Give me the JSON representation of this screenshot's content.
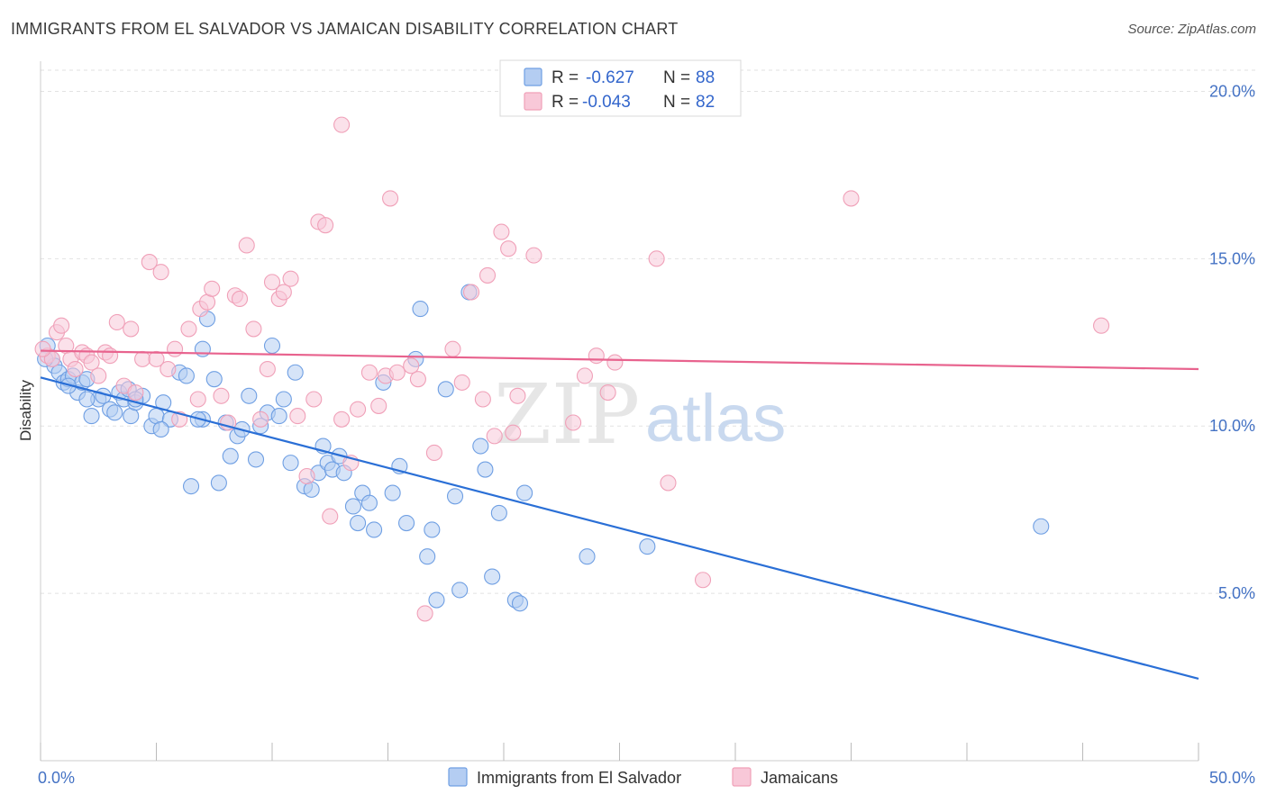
{
  "title": "IMMIGRANTS FROM EL SALVADOR VS JAMAICAN DISABILITY CORRELATION CHART",
  "source": "Source: ZipAtlas.com",
  "watermark": {
    "zip": "ZIP",
    "atlas": "atlas"
  },
  "legend_stats": [
    {
      "r_label": "R =",
      "r_value": "-0.627",
      "n_label": "N =",
      "n_value": "88"
    },
    {
      "r_label": "R =",
      "r_value": "-0.043",
      "n_label": "N =",
      "n_value": "82"
    }
  ],
  "chart_data": {
    "type": "scatter",
    "title": "IMMIGRANTS FROM EL SALVADOR VS JAMAICAN DISABILITY CORRELATION CHART",
    "xlabel": "",
    "ylabel": "Disability",
    "xlim": [
      0,
      50
    ],
    "ylim": [
      0,
      20.9
    ],
    "x_tick_labels": [
      {
        "value": 0,
        "label": "0.0%"
      },
      {
        "value": 50,
        "label": "50.0%"
      }
    ],
    "y_tick_labels": [
      {
        "value": 5,
        "label": "5.0%"
      },
      {
        "value": 10,
        "label": "10.0%"
      },
      {
        "value": 15,
        "label": "15.0%"
      },
      {
        "value": 20,
        "label": "20.0%"
      }
    ],
    "grid": "horizontal dashed",
    "legend_position": "bottom",
    "series": [
      {
        "name": "Immigrants from El Salvador",
        "color": "#6f9fe3",
        "fill": "#b4cdf2",
        "line_color": "#2a6fd6",
        "r": -0.627,
        "n": 88,
        "trend": {
          "x": [
            0,
            50
          ],
          "y": [
            11.45,
            2.45
          ]
        },
        "points": [
          [
            0.3,
            12.4
          ],
          [
            0.5,
            12.0
          ],
          [
            0.6,
            11.8
          ],
          [
            0.8,
            11.6
          ],
          [
            1.0,
            11.3
          ],
          [
            1.2,
            11.4
          ],
          [
            1.4,
            11.5
          ],
          [
            1.6,
            11.0
          ],
          [
            1.8,
            11.3
          ],
          [
            2.0,
            11.4
          ],
          [
            2.2,
            10.3
          ],
          [
            2.5,
            10.8
          ],
          [
            2.7,
            10.9
          ],
          [
            3.0,
            10.5
          ],
          [
            3.2,
            10.4
          ],
          [
            3.4,
            11.0
          ],
          [
            3.6,
            10.8
          ],
          [
            3.9,
            10.3
          ],
          [
            4.1,
            10.7
          ],
          [
            4.4,
            10.9
          ],
          [
            4.8,
            10.0
          ],
          [
            5.0,
            10.3
          ],
          [
            5.3,
            10.7
          ],
          [
            5.6,
            10.2
          ],
          [
            6.0,
            11.6
          ],
          [
            6.3,
            11.5
          ],
          [
            7.0,
            12.3
          ],
          [
            7.2,
            13.2
          ],
          [
            7.5,
            11.4
          ],
          [
            7.0,
            10.2
          ],
          [
            7.7,
            8.3
          ],
          [
            8.0,
            10.1
          ],
          [
            8.2,
            9.1
          ],
          [
            8.5,
            9.7
          ],
          [
            8.7,
            9.9
          ],
          [
            9.0,
            10.9
          ],
          [
            9.3,
            9.0
          ],
          [
            9.5,
            10.0
          ],
          [
            9.8,
            10.4
          ],
          [
            10.0,
            12.4
          ],
          [
            10.3,
            10.3
          ],
          [
            10.5,
            10.8
          ],
          [
            10.8,
            8.9
          ],
          [
            11.0,
            11.6
          ],
          [
            11.4,
            8.2
          ],
          [
            11.7,
            8.1
          ],
          [
            12.0,
            8.6
          ],
          [
            12.2,
            9.4
          ],
          [
            12.4,
            8.9
          ],
          [
            12.6,
            8.7
          ],
          [
            12.9,
            9.1
          ],
          [
            13.1,
            8.6
          ],
          [
            13.5,
            7.6
          ],
          [
            13.7,
            7.1
          ],
          [
            13.9,
            8.0
          ],
          [
            14.2,
            7.7
          ],
          [
            14.4,
            6.9
          ],
          [
            14.8,
            11.3
          ],
          [
            15.2,
            8.0
          ],
          [
            15.5,
            8.8
          ],
          [
            15.8,
            7.1
          ],
          [
            16.2,
            12.0
          ],
          [
            16.4,
            13.5
          ],
          [
            16.7,
            6.1
          ],
          [
            16.9,
            6.9
          ],
          [
            17.1,
            4.8
          ],
          [
            17.5,
            11.1
          ],
          [
            17.9,
            7.9
          ],
          [
            18.1,
            5.1
          ],
          [
            18.5,
            14.0
          ],
          [
            19.0,
            9.4
          ],
          [
            19.2,
            8.7
          ],
          [
            19.5,
            5.5
          ],
          [
            19.8,
            7.4
          ],
          [
            20.5,
            4.8
          ],
          [
            20.7,
            4.7
          ],
          [
            20.9,
            8.0
          ],
          [
            5.2,
            9.9
          ],
          [
            6.5,
            8.2
          ],
          [
            3.8,
            11.1
          ],
          [
            2.0,
            10.8
          ],
          [
            1.2,
            11.2
          ],
          [
            4.1,
            10.8
          ],
          [
            6.8,
            10.2
          ],
          [
            23.6,
            6.1
          ],
          [
            26.2,
            6.4
          ],
          [
            43.2,
            7.0
          ],
          [
            0.2,
            12.0
          ]
        ]
      },
      {
        "name": "Jamaicans",
        "color": "#f0a0b8",
        "fill": "#f8c8d8",
        "line_color": "#e8638e",
        "r": -0.043,
        "n": 82,
        "trend": {
          "x": [
            0,
            50
          ],
          "y": [
            12.25,
            11.7
          ]
        },
        "points": [
          [
            0.3,
            12.1
          ],
          [
            0.5,
            12.0
          ],
          [
            0.7,
            12.8
          ],
          [
            0.9,
            13.0
          ],
          [
            1.1,
            12.4
          ],
          [
            1.3,
            12.0
          ],
          [
            1.5,
            11.7
          ],
          [
            1.8,
            12.2
          ],
          [
            2.0,
            12.1
          ],
          [
            2.2,
            11.9
          ],
          [
            2.5,
            11.5
          ],
          [
            2.8,
            12.2
          ],
          [
            3.0,
            12.1
          ],
          [
            3.3,
            13.1
          ],
          [
            3.6,
            11.2
          ],
          [
            3.9,
            12.9
          ],
          [
            4.1,
            11.0
          ],
          [
            4.4,
            12.0
          ],
          [
            4.7,
            14.9
          ],
          [
            5.0,
            12.0
          ],
          [
            5.2,
            14.6
          ],
          [
            5.5,
            11.7
          ],
          [
            5.8,
            12.3
          ],
          [
            6.0,
            10.2
          ],
          [
            6.4,
            12.9
          ],
          [
            6.8,
            10.8
          ],
          [
            6.9,
            13.5
          ],
          [
            7.2,
            13.7
          ],
          [
            7.4,
            14.1
          ],
          [
            7.8,
            10.9
          ],
          [
            8.1,
            10.1
          ],
          [
            8.4,
            13.9
          ],
          [
            8.6,
            13.8
          ],
          [
            8.9,
            15.4
          ],
          [
            9.2,
            12.9
          ],
          [
            9.5,
            10.2
          ],
          [
            9.8,
            11.7
          ],
          [
            10.0,
            14.3
          ],
          [
            10.3,
            13.8
          ],
          [
            10.5,
            14.0
          ],
          [
            10.8,
            14.4
          ],
          [
            11.1,
            10.3
          ],
          [
            11.5,
            8.5
          ],
          [
            11.8,
            10.8
          ],
          [
            12.0,
            16.1
          ],
          [
            12.3,
            16.0
          ],
          [
            12.5,
            7.3
          ],
          [
            13.0,
            10.2
          ],
          [
            13.4,
            8.9
          ],
          [
            13.7,
            10.5
          ],
          [
            14.2,
            11.6
          ],
          [
            14.6,
            10.6
          ],
          [
            14.9,
            11.5
          ],
          [
            15.1,
            16.8
          ],
          [
            15.4,
            11.6
          ],
          [
            16.0,
            11.8
          ],
          [
            16.3,
            11.4
          ],
          [
            16.6,
            4.4
          ],
          [
            17.0,
            9.2
          ],
          [
            17.8,
            12.3
          ],
          [
            18.2,
            11.3
          ],
          [
            18.6,
            14.0
          ],
          [
            19.1,
            10.8
          ],
          [
            19.3,
            14.5
          ],
          [
            19.6,
            9.7
          ],
          [
            19.9,
            15.8
          ],
          [
            20.2,
            15.3
          ],
          [
            20.4,
            9.8
          ],
          [
            20.6,
            10.9
          ],
          [
            21.3,
            15.1
          ],
          [
            23.0,
            10.1
          ],
          [
            23.5,
            11.5
          ],
          [
            24.0,
            12.1
          ],
          [
            24.5,
            11.0
          ],
          [
            24.8,
            11.9
          ],
          [
            26.6,
            15.0
          ],
          [
            27.1,
            8.3
          ],
          [
            28.6,
            5.4
          ],
          [
            35.0,
            16.8
          ],
          [
            45.8,
            13.0
          ],
          [
            0.1,
            12.3
          ],
          [
            13.0,
            19.0
          ]
        ]
      }
    ]
  }
}
